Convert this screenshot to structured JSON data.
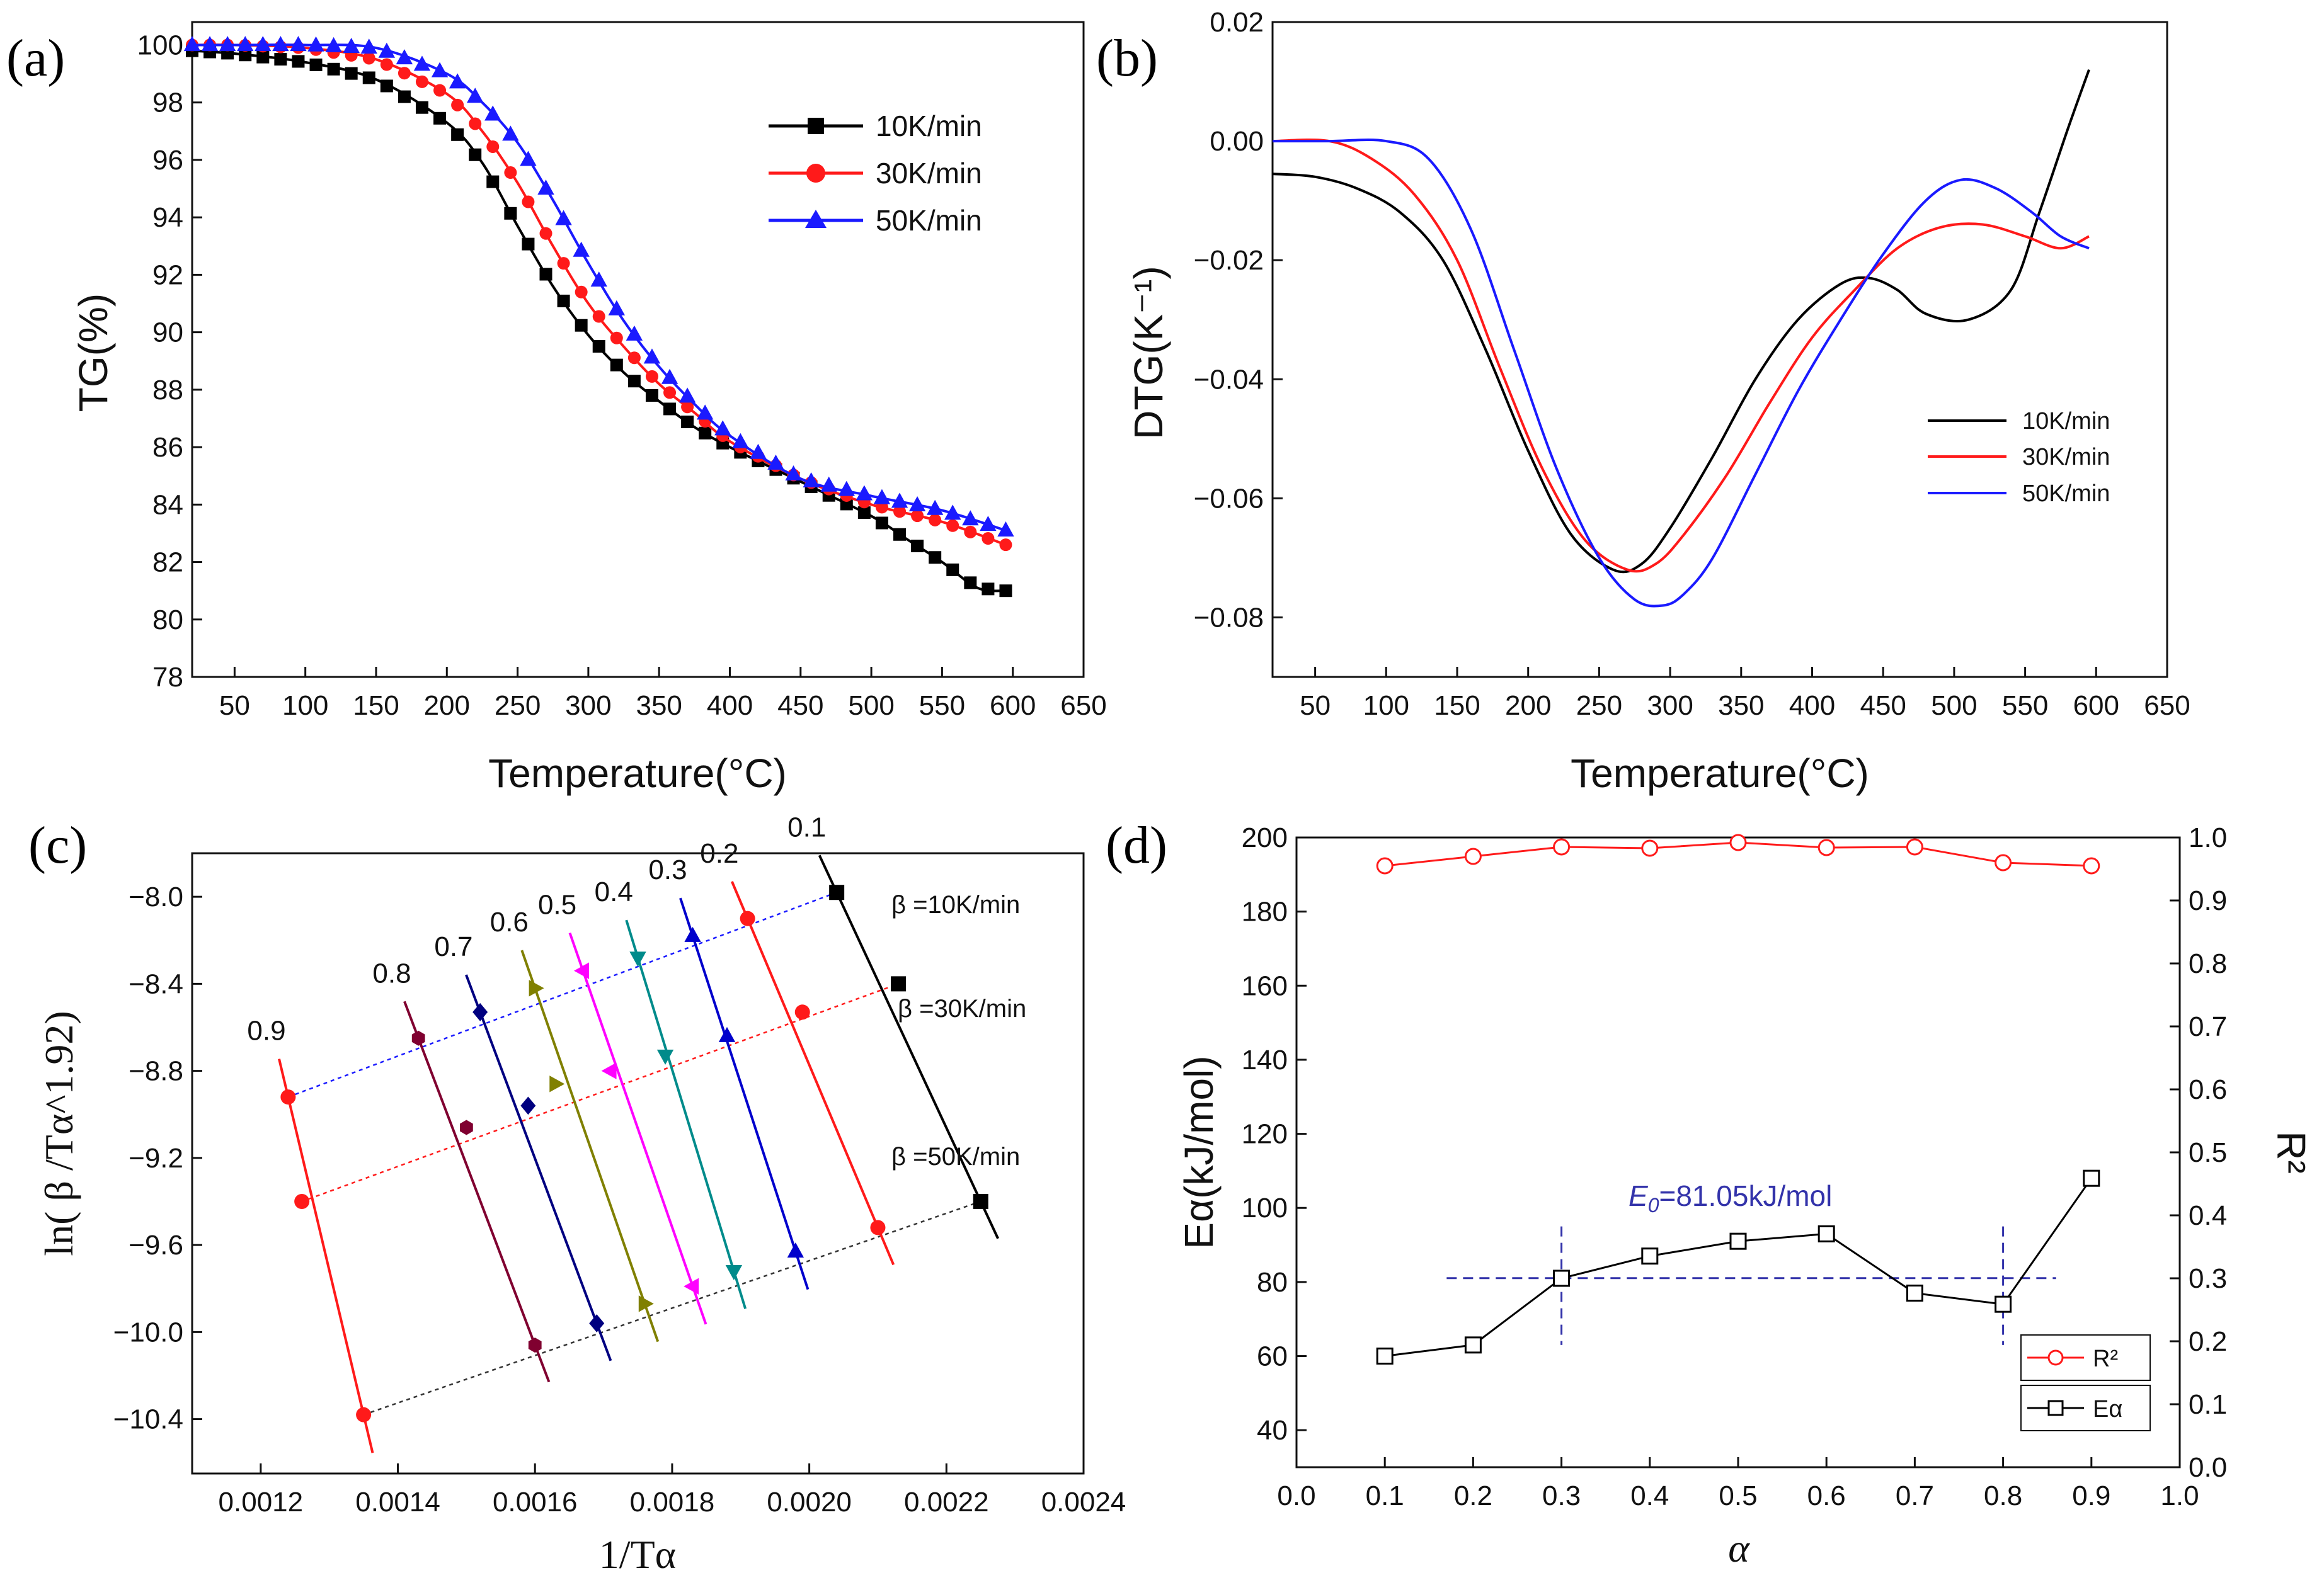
{
  "colors": {
    "red": "#ff1a1a",
    "black": "#000000",
    "blue": "#1a1aff",
    "darkblue": "#3333aa"
  },
  "chart_data": [
    {
      "id": "a",
      "type": "line",
      "panel_label": "(a)",
      "xlabel": "Temperature(°C)",
      "ylabel": "TG(%)",
      "xlim": [
        20,
        650
      ],
      "ylim": [
        78,
        100.8
      ],
      "xticks": [
        50,
        100,
        150,
        200,
        250,
        300,
        350,
        400,
        450,
        500,
        550,
        600,
        650
      ],
      "xtick_labels": [
        "50",
        "100",
        "150",
        "200",
        "250",
        "300",
        "350",
        "400",
        "450",
        "500",
        "550",
        "600",
        "650"
      ],
      "yticks": [
        78,
        80,
        82,
        84,
        86,
        88,
        90,
        92,
        94,
        96,
        98,
        100
      ],
      "ytick_labels": [
        "78",
        "80",
        "82",
        "84",
        "86",
        "88",
        "90",
        "92",
        "94",
        "96",
        "98",
        "100"
      ],
      "legend": [
        "10K/min",
        "30K/min",
        "50K/min"
      ],
      "series": [
        {
          "name": "10K/min",
          "color": "#000000",
          "marker": "square",
          "x": [
            20,
            50,
            100,
            150,
            200,
            225,
            250,
            275,
            300,
            325,
            350,
            375,
            400,
            450,
            500,
            525,
            550,
            575,
            595
          ],
          "y": [
            99.8,
            99.7,
            99.4,
            98.8,
            97.3,
            95.9,
            93.7,
            91.6,
            89.9,
            88.6,
            87.6,
            86.7,
            86.0,
            84.8,
            83.6,
            82.8,
            82.0,
            81.1,
            81.0
          ]
        },
        {
          "name": "30K/min",
          "color": "#ff1a1a",
          "marker": "circle",
          "x": [
            20,
            50,
            100,
            150,
            200,
            225,
            250,
            275,
            300,
            325,
            350,
            375,
            400,
            450,
            500,
            550,
            595
          ],
          "y": [
            100.0,
            100.0,
            99.9,
            99.5,
            98.3,
            97.0,
            95.2,
            93.0,
            91.0,
            89.5,
            88.2,
            87.2,
            86.2,
            84.9,
            84.0,
            83.4,
            82.6
          ]
        },
        {
          "name": "50K/min",
          "color": "#1a1aff",
          "marker": "triangle",
          "x": [
            20,
            50,
            100,
            150,
            200,
            225,
            250,
            275,
            300,
            325,
            350,
            375,
            400,
            450,
            500,
            550,
            595
          ],
          "y": [
            100.0,
            100.0,
            100.0,
            99.9,
            99.0,
            98.0,
            96.6,
            94.6,
            92.4,
            90.4,
            88.8,
            87.5,
            86.4,
            84.9,
            84.3,
            83.8,
            83.1
          ]
        }
      ]
    },
    {
      "id": "b",
      "type": "line",
      "panel_label": "(b)",
      "xlabel": "Temperature(°C)",
      "ylabel": "DTG(K⁻¹)",
      "xlim": [
        20,
        650
      ],
      "ylim": [
        -0.09,
        0.02
      ],
      "xticks": [
        50,
        100,
        150,
        200,
        250,
        300,
        350,
        400,
        450,
        500,
        550,
        600,
        650
      ],
      "xtick_labels": [
        "50",
        "100",
        "150",
        "200",
        "250",
        "300",
        "350",
        "400",
        "450",
        "500",
        "550",
        "600",
        "650"
      ],
      "yticks": [
        0.02,
        0.0,
        -0.02,
        -0.04,
        -0.06,
        -0.08
      ],
      "ytick_labels": [
        "0.02",
        "0.00",
        "−0.02",
        "−0.04",
        "−0.06",
        "−0.08"
      ],
      "legend": [
        "10K/min",
        "30K/min",
        "50K/min"
      ],
      "series": [
        {
          "name": "10K/min",
          "color": "#000000",
          "x": [
            20,
            50,
            80,
            110,
            140,
            170,
            200,
            230,
            260,
            280,
            300,
            330,
            360,
            390,
            420,
            440,
            460,
            480,
            510,
            540,
            560,
            580,
            595
          ],
          "y": [
            -0.0055,
            -0.006,
            -0.008,
            -0.012,
            -0.02,
            -0.035,
            -0.052,
            -0.066,
            -0.072,
            -0.071,
            -0.065,
            -0.053,
            -0.04,
            -0.03,
            -0.024,
            -0.023,
            -0.025,
            -0.029,
            -0.03,
            -0.025,
            -0.012,
            0.002,
            0.012
          ]
        },
        {
          "name": "30K/min",
          "color": "#ff1a1a",
          "x": [
            20,
            60,
            90,
            120,
            150,
            180,
            210,
            240,
            270,
            290,
            310,
            340,
            370,
            400,
            430,
            460,
            490,
            520,
            550,
            575,
            595
          ],
          "y": [
            0.0,
            0.0,
            -0.003,
            -0.009,
            -0.02,
            -0.038,
            -0.055,
            -0.067,
            -0.072,
            -0.071,
            -0.066,
            -0.056,
            -0.044,
            -0.033,
            -0.025,
            -0.018,
            -0.0145,
            -0.014,
            -0.016,
            -0.018,
            -0.016
          ]
        },
        {
          "name": "50K/min",
          "color": "#1a1aff",
          "x": [
            20,
            60,
            100,
            130,
            160,
            190,
            220,
            250,
            275,
            295,
            310,
            330,
            360,
            390,
            420,
            450,
            480,
            505,
            530,
            555,
            575,
            595
          ],
          "y": [
            0.0,
            0.0,
            0.0,
            -0.003,
            -0.015,
            -0.035,
            -0.055,
            -0.07,
            -0.077,
            -0.078,
            -0.076,
            -0.07,
            -0.056,
            -0.042,
            -0.03,
            -0.019,
            -0.01,
            -0.0065,
            -0.008,
            -0.012,
            -0.016,
            -0.018
          ]
        }
      ]
    },
    {
      "id": "c",
      "type": "scatter",
      "panel_label": "(c)",
      "xlabel": "1/Tα",
      "ylabel": "ln( β /Tα^1.92)",
      "xlim": [
        0.0011,
        0.0024
      ],
      "ylim": [
        -10.65,
        -7.8
      ],
      "xticks": [
        0.0012,
        0.0014,
        0.0016,
        0.0018,
        0.002,
        0.0022,
        0.0024
      ],
      "xtick_labels": [
        "0.0012",
        "0.0014",
        "0.0016",
        "0.0018",
        "0.0020",
        "0.0022",
        "0.0024"
      ],
      "yticks": [
        -8.0,
        -8.4,
        -8.8,
        -9.2,
        -9.6,
        -10.0,
        -10.4
      ],
      "ytick_labels": [
        "−8.0",
        "−8.4",
        "−8.8",
        "−9.2",
        "−9.6",
        "−10.0",
        "−10.4"
      ],
      "beta_labels": [
        "β =10K/min",
        "β =30K/min",
        "β =50K/min"
      ],
      "conversions": [
        {
          "alpha": "0.1",
          "color": "#000000",
          "marker": "square",
          "x": [
            0.00204,
            0.00213,
            0.00225
          ],
          "y": [
            -7.98,
            -8.4,
            -9.4
          ]
        },
        {
          "alpha": "0.2",
          "color": "#ff1a1a",
          "marker": "circle",
          "x": [
            0.00191,
            0.00199,
            0.0021
          ],
          "y": [
            -8.1,
            -8.53,
            -9.52
          ]
        },
        {
          "alpha": "0.3",
          "color": "#0000cc",
          "marker": "triangle-up",
          "x": [
            0.00183,
            0.00188,
            0.00198
          ],
          "y": [
            -8.18,
            -8.64,
            -9.63
          ]
        },
        {
          "alpha": "0.4",
          "color": "#008b8b",
          "marker": "triangle-down",
          "x": [
            0.00175,
            0.00179,
            0.00189
          ],
          "y": [
            -8.28,
            -8.73,
            -9.72
          ]
        },
        {
          "alpha": "0.5",
          "color": "#ff00ff",
          "marker": "triangle-left",
          "x": [
            0.00167,
            0.00171,
            0.00183
          ],
          "y": [
            -8.34,
            -8.8,
            -9.79
          ]
        },
        {
          "alpha": "0.6",
          "color": "#808000",
          "marker": "triangle-right",
          "x": [
            0.0016,
            0.00163,
            0.00176
          ],
          "y": [
            -8.42,
            -8.86,
            -9.87
          ]
        },
        {
          "alpha": "0.7",
          "color": "#000080",
          "marker": "diamond",
          "x": [
            0.00152,
            0.00159,
            0.00169
          ],
          "y": [
            -8.53,
            -8.96,
            -9.96
          ]
        },
        {
          "alpha": "0.8",
          "color": "#800030",
          "marker": "hexagon",
          "x": [
            0.00143,
            0.0015,
            0.0016
          ],
          "y": [
            -8.65,
            -9.06,
            -10.06
          ]
        },
        {
          "alpha": "0.9",
          "color": "#ff1a1a",
          "marker": "circle",
          "x": [
            0.00124,
            0.00126,
            0.00135
          ],
          "y": [
            -8.92,
            -9.4,
            -10.38
          ]
        }
      ]
    },
    {
      "id": "d",
      "type": "line",
      "panel_label": "(d)",
      "xlabel": "α",
      "ylabel": "Eα(kJ/mol)",
      "y2label": "R²",
      "xlim": [
        0.0,
        1.0
      ],
      "ylim": [
        30,
        200
      ],
      "y2lim": [
        0.0,
        1.0
      ],
      "xticks": [
        0.0,
        0.1,
        0.2,
        0.3,
        0.4,
        0.5,
        0.6,
        0.7,
        0.8,
        0.9,
        1.0
      ],
      "xtick_labels": [
        "0.0",
        "0.1",
        "0.2",
        "0.3",
        "0.4",
        "0.5",
        "0.6",
        "0.7",
        "0.8",
        "0.9",
        "1.0"
      ],
      "yticks": [
        40,
        60,
        80,
        100,
        120,
        140,
        160,
        180,
        200
      ],
      "ytick_labels": [
        "40",
        "60",
        "80",
        "100",
        "120",
        "140",
        "160",
        "180",
        "200"
      ],
      "y2ticks": [
        0.0,
        0.1,
        0.2,
        0.3,
        0.4,
        0.5,
        0.6,
        0.7,
        0.8,
        0.9,
        1.0
      ],
      "y2tick_labels": [
        "0.0",
        "0.1",
        "0.2",
        "0.3",
        "0.4",
        "0.5",
        "0.6",
        "0.7",
        "0.8",
        "0.9",
        "1.0"
      ],
      "annotation": "E0=81.05kJ/mol",
      "annotation_sym": "E",
      "annotation_sub": "0",
      "annotation_rest": "=81.05kJ/mol",
      "e0_value": 81.05,
      "e0_range": [
        0.3,
        0.8
      ],
      "legend": [
        "R²",
        "Eα"
      ],
      "series": [
        {
          "name": "Eα",
          "axis": "left",
          "color": "#000000",
          "marker": "square-open",
          "x": [
            0.1,
            0.2,
            0.3,
            0.4,
            0.5,
            0.6,
            0.7,
            0.8,
            0.9
          ],
          "y": [
            60,
            63,
            81,
            87,
            91,
            93,
            77,
            74,
            108
          ]
        },
        {
          "name": "R²",
          "axis": "right",
          "color": "#ff1a1a",
          "marker": "circle-open",
          "x": [
            0.1,
            0.2,
            0.3,
            0.4,
            0.5,
            0.6,
            0.7,
            0.8,
            0.9
          ],
          "y": [
            0.955,
            0.97,
            0.985,
            0.983,
            0.992,
            0.984,
            0.985,
            0.96,
            0.955
          ]
        }
      ]
    }
  ]
}
